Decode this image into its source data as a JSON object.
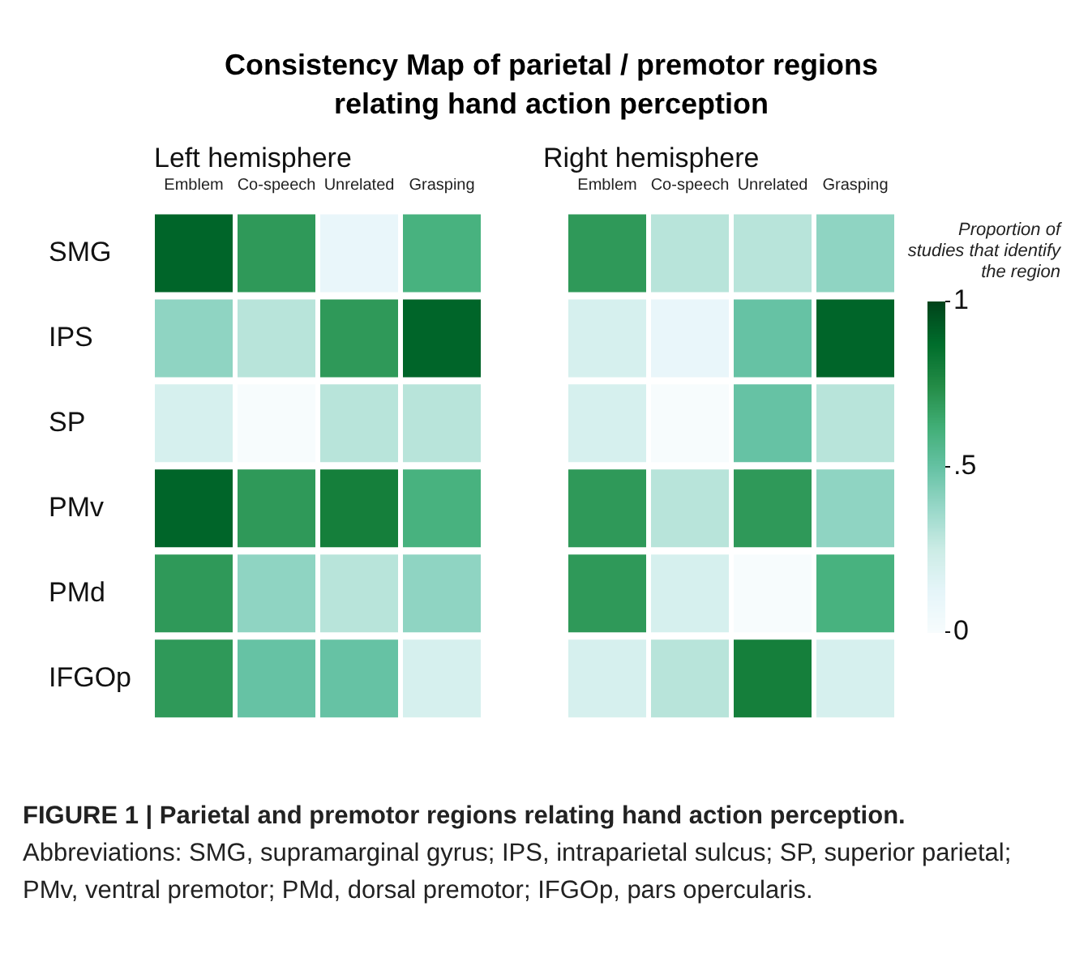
{
  "chart_data": {
    "type": "heatmap",
    "title": "Consistency Map of parietal / premotor regions relating hand action perception",
    "categories": [
      "Emblem",
      "Co-speech",
      "Unrelated",
      "Grasping",
      null,
      "Emblem",
      "Co-speech",
      "Unrelated",
      "Grasping"
    ],
    "y_categories": [
      "SMG",
      "IPS",
      "SP",
      "PMv",
      "PMd",
      "IFGOp"
    ],
    "cells": [
      [
        0.9,
        0.7,
        0.1,
        0.6,
        null,
        0.7,
        0.3,
        0.3,
        0.4
      ],
      [
        0.4,
        0.3,
        0.7,
        0.9,
        null,
        0.2,
        0.1,
        0.5,
        0.9
      ],
      [
        0.2,
        0,
        0.3,
        0.3,
        null,
        0.2,
        0,
        0.5,
        0.3
      ],
      [
        0.9,
        0.7,
        0.8,
        0.6,
        null,
        0.7,
        0.3,
        0.7,
        0.4
      ],
      [
        0.7,
        0.4,
        0.3,
        0.4,
        null,
        0.7,
        0.2,
        0,
        0.6
      ],
      [
        0.7,
        0.5,
        0.5,
        0.2,
        null,
        0.2,
        0.3,
        0.8,
        0.2
      ]
    ],
    "clim": [
      0,
      1
    ],
    "cticks": [
      0,
      {
        "value": 0.5,
        "label": ".5"
      },
      1
    ],
    "clabel": "Proportion of studies that identify the region",
    "annotations": [
      "Left hemisphere",
      "Right hemisphere",
      "FIGURE 1 | Parietal and premotor regions relating hand action perception.",
      "Abbreviations: SMG, supramarginal gyrus; IPS, intraparietal sulcus; SP, superior parietal; PMv, ventral premotor; PMd, dorsal premotor; IFGOp, pars opercularis."
    ]
  }
}
